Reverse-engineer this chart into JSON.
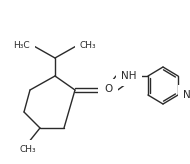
{
  "bg_color": "#ffffff",
  "line_color": "#2a2a2a",
  "line_width": 1.0,
  "font_size": 6.5,
  "fig_width": 1.9,
  "fig_height": 1.64,
  "dpi": 100,
  "xlim": [
    0,
    190
  ],
  "ylim": [
    0,
    164
  ],
  "C1": [
    75,
    90
  ],
  "C2": [
    55,
    76
  ],
  "C3": [
    30,
    90
  ],
  "C4": [
    24,
    112
  ],
  "C5": [
    40,
    128
  ],
  "C6": [
    64,
    128
  ],
  "iPrCH": [
    55,
    58
  ],
  "CH3L": [
    32,
    45
  ],
  "CH3R": [
    78,
    45
  ],
  "CH3_5x": 28,
  "CH3_5y": 143,
  "N_hyd": [
    98,
    90
  ],
  "NH_x": 116,
  "NH_y": 76,
  "amC": [
    134,
    76
  ],
  "O_x": 116,
  "O_y": 89,
  "pyC4": [
    148,
    76
  ],
  "pyC3": [
    148,
    95
  ],
  "pyC2": [
    163,
    104
  ],
  "pyN1": [
    178,
    95
  ],
  "pyC6": [
    178,
    76
  ],
  "pyC5": [
    163,
    67
  ]
}
